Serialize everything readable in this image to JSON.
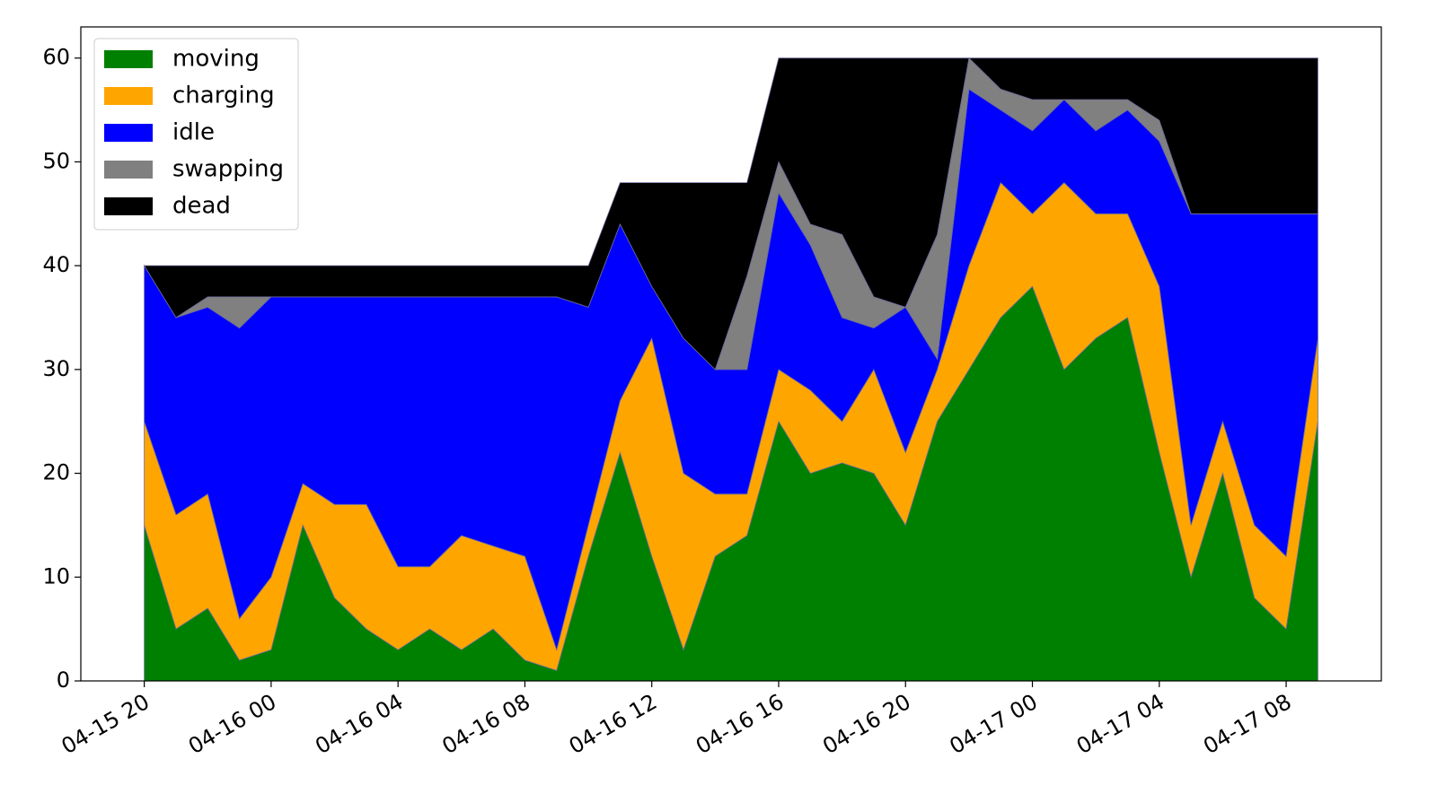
{
  "chart_data": {
    "type": "stacked_area",
    "x": [
      "04-15 20",
      "04-15 21",
      "04-15 22",
      "04-15 23",
      "04-16 00",
      "04-16 01",
      "04-16 02",
      "04-16 03",
      "04-16 04",
      "04-16 05",
      "04-16 06",
      "04-16 07",
      "04-16 08",
      "04-16 09",
      "04-16 10",
      "04-16 11",
      "04-16 12",
      "04-16 13",
      "04-16 14",
      "04-16 15",
      "04-16 16",
      "04-16 17",
      "04-16 18",
      "04-16 19",
      "04-16 20",
      "04-16 21",
      "04-16 22",
      "04-16 23",
      "04-17 00",
      "04-17 01",
      "04-17 02",
      "04-17 03",
      "04-17 04",
      "04-17 05",
      "04-17 06",
      "04-17 07",
      "04-17 08",
      "04-17 09"
    ],
    "series": [
      {
        "name": "moving",
        "color": "#008000",
        "values": [
          15,
          5,
          7,
          2,
          3,
          15,
          8,
          5,
          3,
          5,
          3,
          5,
          2,
          1,
          12,
          22,
          12,
          3,
          12,
          14,
          25,
          20,
          21,
          20,
          15,
          25,
          30,
          35,
          38,
          30,
          33,
          35,
          22,
          10,
          20,
          8,
          5,
          25
        ]
      },
      {
        "name": "charging",
        "color": "#ffa500",
        "values": [
          10,
          11,
          11,
          4,
          7,
          4,
          9,
          12,
          8,
          6,
          11,
          8,
          10,
          2,
          3,
          5,
          21,
          17,
          6,
          4,
          5,
          8,
          4,
          10,
          7,
          5,
          10,
          13,
          7,
          18,
          12,
          10,
          16,
          5,
          5,
          7,
          7,
          8
        ]
      },
      {
        "name": "idle",
        "color": "#0000ff",
        "values": [
          15,
          19,
          18,
          28,
          27,
          18,
          20,
          20,
          26,
          26,
          23,
          24,
          25,
          34,
          21,
          17,
          5,
          13,
          12,
          12,
          17,
          14,
          10,
          4,
          14,
          1,
          17,
          7,
          8,
          8,
          8,
          10,
          14,
          30,
          20,
          30,
          33,
          12
        ]
      },
      {
        "name": "swapping",
        "color": "#808080",
        "values": [
          0,
          0,
          1,
          3,
          0,
          0,
          0,
          0,
          0,
          0,
          0,
          0,
          0,
          0,
          0,
          0,
          0,
          0,
          0,
          9,
          3,
          2,
          8,
          3,
          0,
          12,
          3,
          2,
          3,
          0,
          3,
          1,
          2,
          0,
          0,
          0,
          0,
          0
        ]
      },
      {
        "name": "dead",
        "color": "#000000",
        "values": [
          0,
          5,
          3,
          3,
          3,
          3,
          3,
          3,
          3,
          3,
          3,
          3,
          3,
          3,
          4,
          4,
          10,
          15,
          18,
          9,
          10,
          16,
          17,
          23,
          24,
          17,
          0,
          3,
          4,
          4,
          4,
          4,
          6,
          15,
          15,
          15,
          15,
          15
        ]
      }
    ],
    "xlim": [
      "04-15 18",
      "04-17 11"
    ],
    "xticks": [
      "04-15 20",
      "04-16 00",
      "04-16 04",
      "04-16 08",
      "04-16 12",
      "04-16 16",
      "04-16 20",
      "04-17 00",
      "04-17 04",
      "04-17 08"
    ],
    "ylim": [
      0,
      63
    ],
    "yticks": [
      0,
      10,
      20,
      30,
      40,
      50,
      60
    ],
    "legend": "upper left"
  }
}
